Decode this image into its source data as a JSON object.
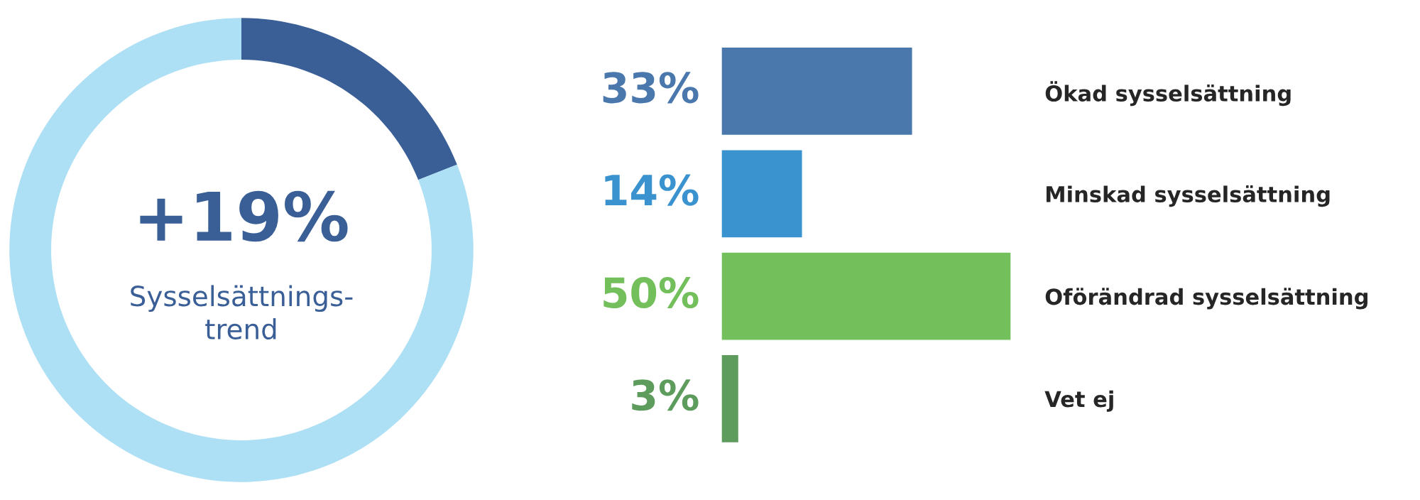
{
  "chart_data": [
    {
      "type": "donut",
      "categories": [
        null,
        null
      ],
      "values": [
        19,
        81
      ],
      "colors": [
        "#3a5f96",
        "#addff5"
      ],
      "annotations": [
        "+19%",
        "Sysselsättnings-\ntrend"
      ]
    },
    {
      "type": "bar",
      "orientation": "horizontal",
      "categories": [
        "Ökad sysselsättning",
        "Minskad sysselsättning",
        "Oförändrad sysselsättning",
        "Vet ej"
      ],
      "values": [
        33,
        14,
        50,
        3
      ],
      "colors": [
        "#4a78ad",
        "#3a93cf",
        "#72bf5c",
        "#5e9c5e"
      ],
      "value_labels": [
        "33%",
        "14%",
        "50%",
        "3%"
      ]
    }
  ]
}
